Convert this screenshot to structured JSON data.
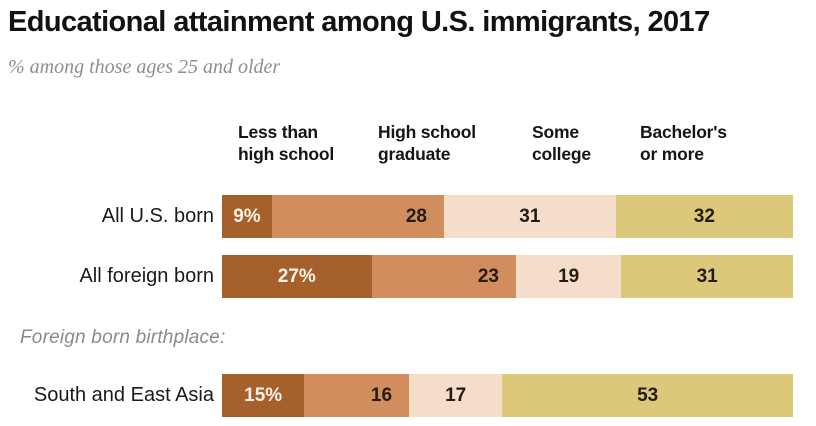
{
  "title": "Educational attainment among U.S. immigrants, 2017",
  "subtitle": "% among those ages 25 and older",
  "section_label": "Foreign born birthplace:",
  "column_headers": [
    "Less than\nhigh school",
    "High school\ngraduate",
    "Some\ncollege",
    "Bachelor's\nor more"
  ],
  "colors": {
    "background": "#ffffff",
    "title_text": "#121212",
    "subtitle_text": "#8e8e8e",
    "section_label_text": "#8a8a8a",
    "row_label_text": "#1a1a1a",
    "header_text": "#151515"
  },
  "chart_data": {
    "type": "bar",
    "orientation": "horizontal",
    "stacked": true,
    "unit": "%",
    "title": "Educational attainment among U.S. immigrants, 2017",
    "subtitle": "% among those ages 25 and older",
    "categories": [
      "All U.S. born",
      "All foreign born",
      "South and East Asia"
    ],
    "group_note": "Foreign born birthplace:",
    "series": [
      {
        "name": "Less than high school",
        "color": "#a5602c",
        "label_color": "#fcf3e6",
        "label_align": "center",
        "values": [
          9,
          27,
          15
        ]
      },
      {
        "name": "High school graduate",
        "color": "#d18d5e",
        "label_color": "#231c12",
        "label_align": "right",
        "values": [
          28,
          23,
          16
        ]
      },
      {
        "name": "Some college",
        "color": "#f4ddc9",
        "label_color": "#231c12",
        "label_align": "center",
        "values": [
          31,
          19,
          17
        ]
      },
      {
        "name": "Bachelor's or more",
        "color": "#dbc87b",
        "label_color": "#231c12",
        "label_align": "center",
        "values": [
          32,
          31,
          53
        ]
      }
    ],
    "value_labels": [
      [
        "9%",
        "28",
        "31",
        "32"
      ],
      [
        "27%",
        "23",
        "19",
        "31"
      ],
      [
        "15%",
        "16",
        "17",
        "53"
      ]
    ],
    "xlim": [
      0,
      100
    ],
    "grid": false,
    "legend_position": "top"
  }
}
